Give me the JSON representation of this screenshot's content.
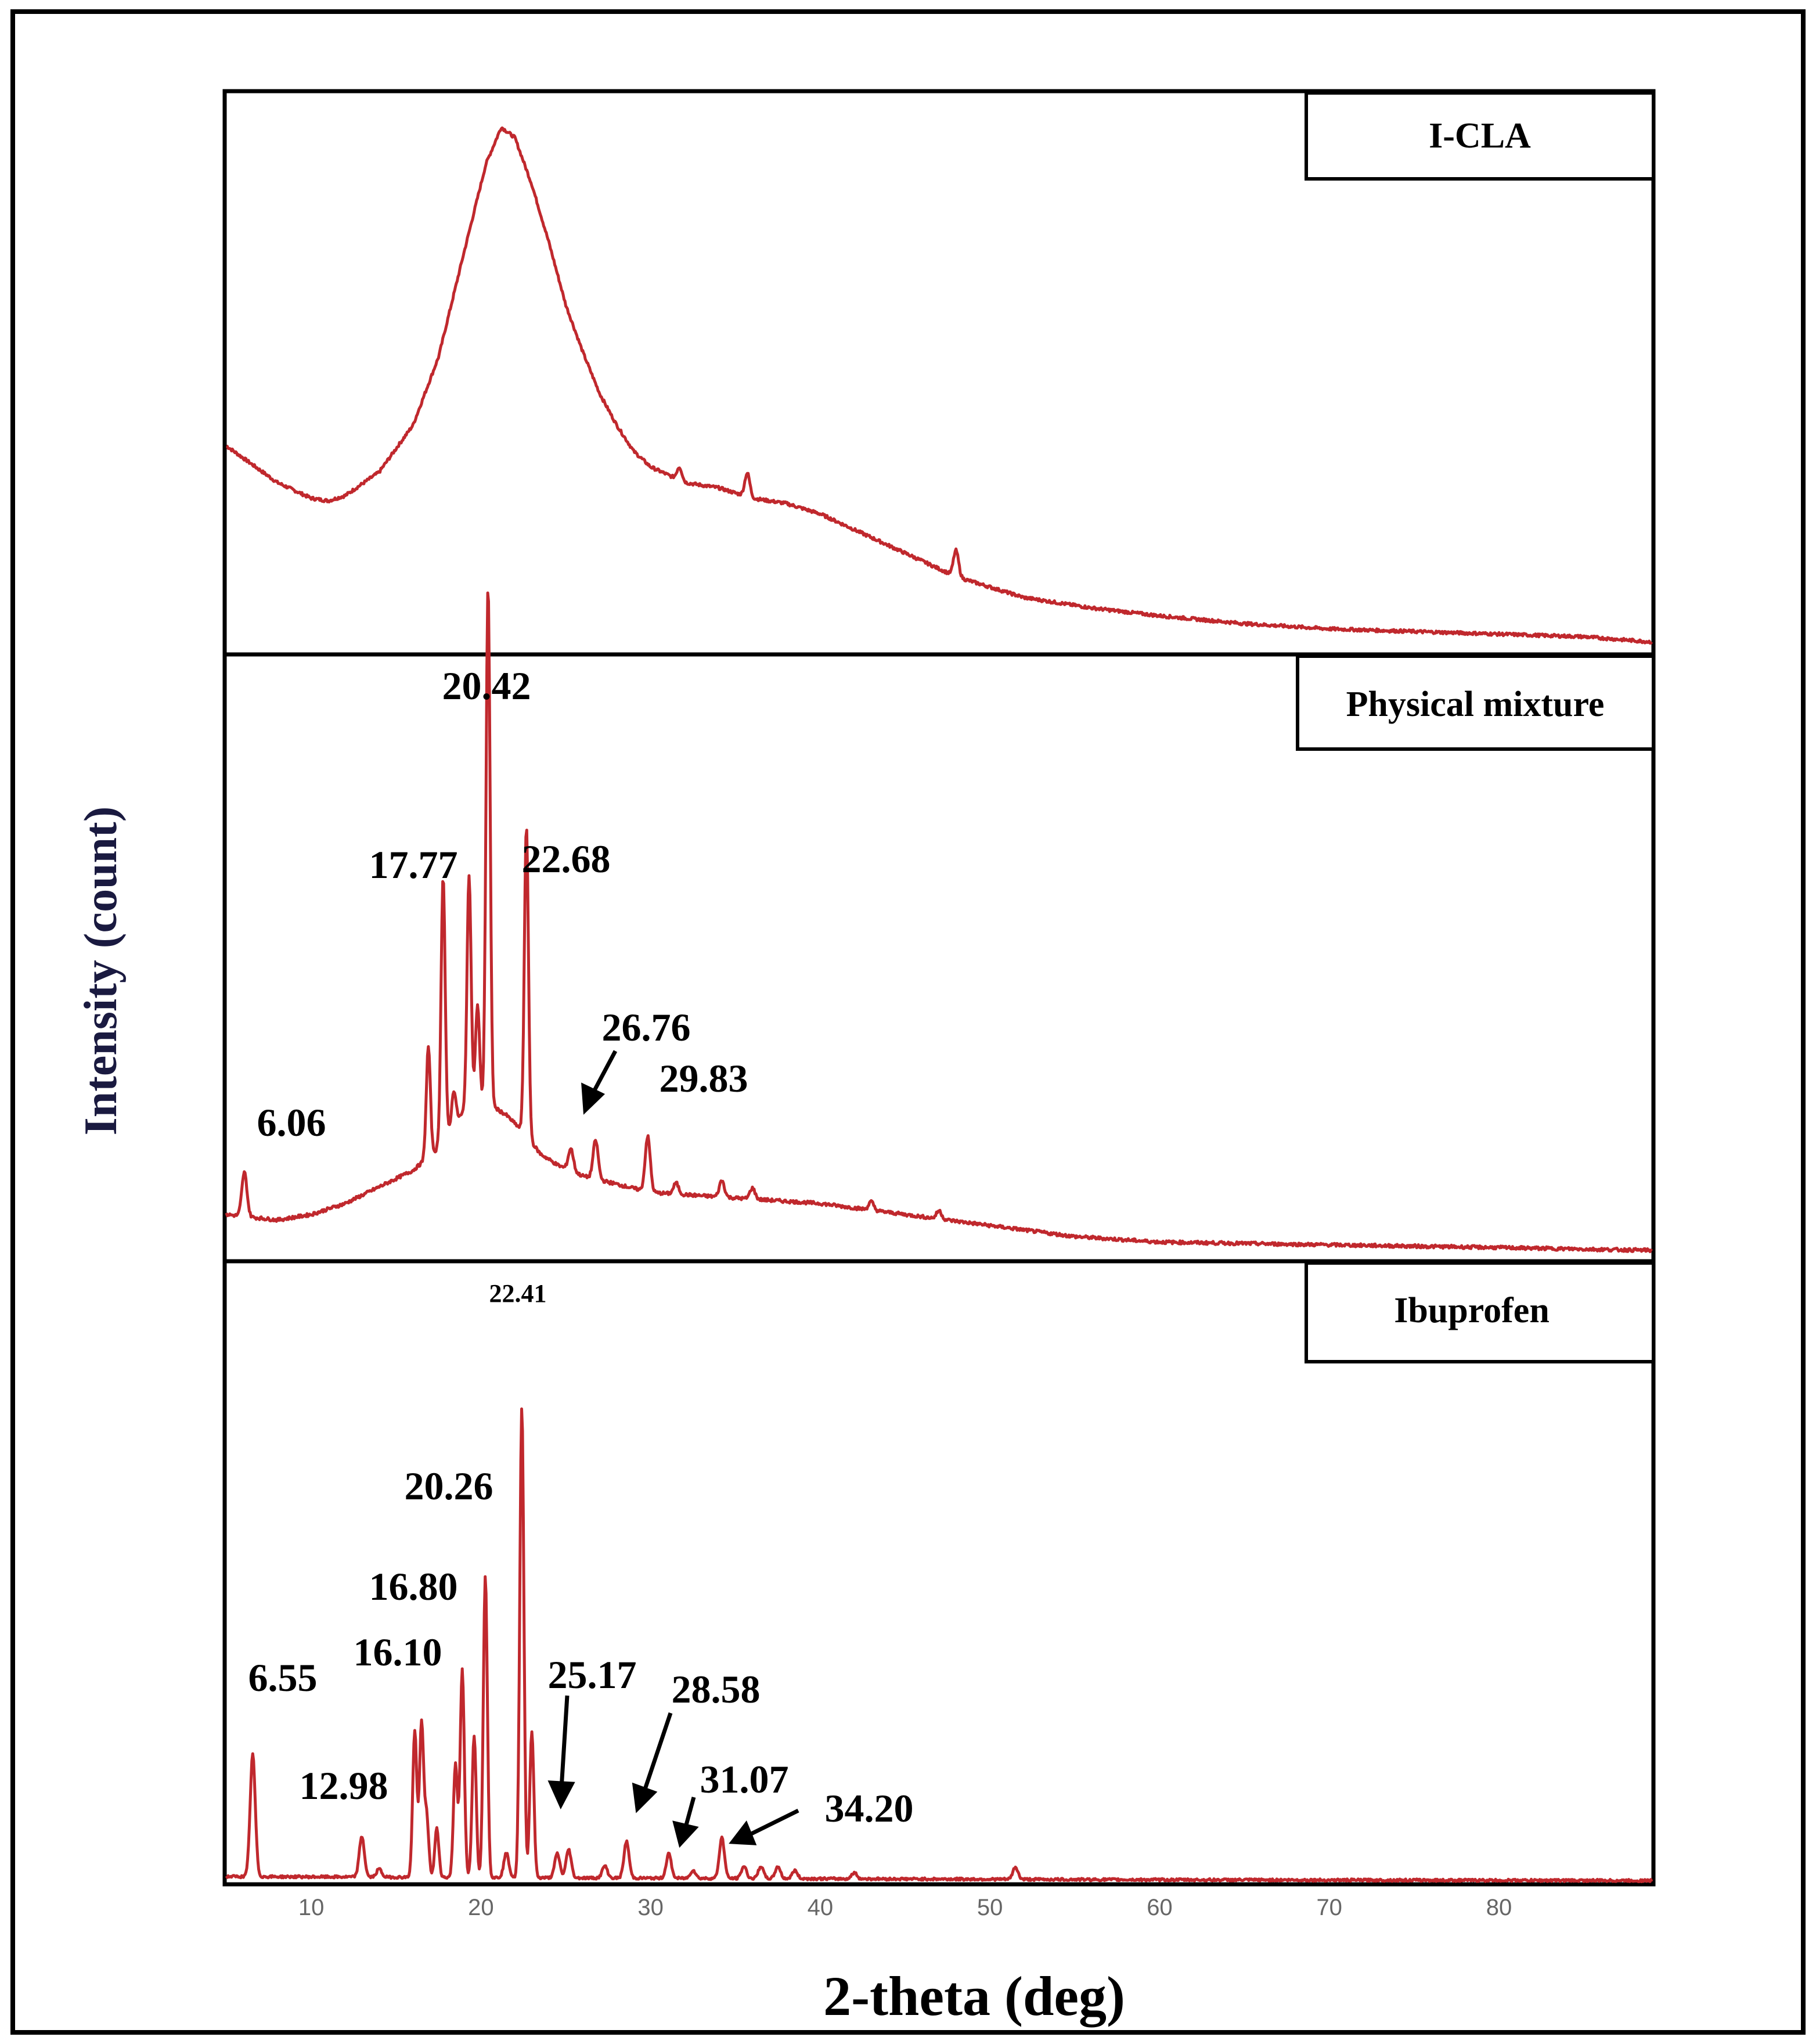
{
  "chart_data": {
    "type": "line",
    "xlabel": "2-theta (deg)",
    "ylabel": "Intensity (count)",
    "xlim": [
      5,
      89
    ],
    "xticks": [
      10,
      20,
      30,
      40,
      50,
      60,
      70,
      80
    ],
    "series_color": "#c0282d",
    "panels": [
      {
        "name": "I-CLA",
        "legend": "I-CLA",
        "ylim": [
          0,
          100
        ],
        "baseline": [
          [
            5,
            38
          ],
          [
            8,
            31
          ],
          [
            10,
            28
          ],
          [
            11,
            27.5
          ],
          [
            12,
            28.5
          ],
          [
            14,
            33
          ],
          [
            16,
            42
          ],
          [
            17.5,
            55
          ],
          [
            19,
            75
          ],
          [
            20.3,
            92
          ],
          [
            21.2,
            99
          ],
          [
            22,
            97
          ],
          [
            23,
            88
          ],
          [
            24,
            77
          ],
          [
            25,
            65
          ],
          [
            26,
            56
          ],
          [
            27,
            48
          ],
          [
            28,
            42
          ],
          [
            29,
            37
          ],
          [
            30,
            34
          ],
          [
            32,
            31
          ],
          [
            34,
            30
          ],
          [
            36,
            28
          ],
          [
            38,
            27
          ],
          [
            40,
            25
          ],
          [
            42,
            22
          ],
          [
            44,
            19
          ],
          [
            46,
            16
          ],
          [
            48,
            13
          ],
          [
            50,
            11
          ],
          [
            52,
            9
          ],
          [
            56,
            7
          ],
          [
            60,
            5.5
          ],
          [
            65,
            4
          ],
          [
            70,
            3
          ],
          [
            75,
            2.5
          ],
          [
            80,
            2
          ],
          [
            85,
            1.5
          ],
          [
            89,
            0.5
          ]
        ],
        "peaks": [
          [
            31.7,
            2.5,
            0.15
          ],
          [
            35.7,
            4.5,
            0.15
          ],
          [
            48.0,
            5,
            0.15
          ]
        ],
        "annotations": []
      },
      {
        "name": "Physical mixture",
        "legend": "Physical mixture",
        "ylim": [
          0,
          100
        ],
        "baseline": [
          [
            5,
            7
          ],
          [
            8,
            6
          ],
          [
            10,
            7
          ],
          [
            12,
            9
          ],
          [
            14,
            12
          ],
          [
            16,
            15
          ],
          [
            17.5,
            19
          ],
          [
            18.5,
            24
          ],
          [
            19.5,
            27
          ],
          [
            20.5,
            27
          ],
          [
            21.5,
            25
          ],
          [
            22.5,
            22
          ],
          [
            23.5,
            18
          ],
          [
            24.5,
            16
          ],
          [
            26,
            14
          ],
          [
            28,
            12.5
          ],
          [
            30,
            11
          ],
          [
            35,
            10
          ],
          [
            40,
            9
          ],
          [
            45,
            7
          ],
          [
            50,
            5
          ],
          [
            55,
            3
          ],
          [
            60,
            2
          ],
          [
            70,
            1.5
          ],
          [
            80,
            1
          ],
          [
            89,
            0.5
          ]
        ],
        "peaks": [
          [
            6.06,
            8,
            0.15
          ],
          [
            16.9,
            20,
            0.12
          ],
          [
            17.77,
            48,
            0.12
          ],
          [
            18.4,
            6,
            0.12
          ],
          [
            19.3,
            42,
            0.12
          ],
          [
            19.8,
            18,
            0.12
          ],
          [
            20.42,
            94,
            0.12
          ],
          [
            22.68,
            56,
            0.12
          ],
          [
            25.3,
            4,
            0.15
          ],
          [
            26.76,
            7,
            0.15
          ],
          [
            29.83,
            10,
            0.15
          ],
          [
            31.5,
            2,
            0.15
          ],
          [
            34.2,
            3,
            0.15
          ],
          [
            36.0,
            2,
            0.15
          ],
          [
            43.0,
            1.5,
            0.15
          ],
          [
            47.0,
            1.5,
            0.15
          ]
        ],
        "annotations": [
          {
            "x": 6.06,
            "text": "6.06"
          },
          {
            "x": 17.77,
            "text": "17.77"
          },
          {
            "x": 20.42,
            "text": "20.42"
          },
          {
            "x": 22.68,
            "text": "22.68"
          },
          {
            "x": 26.76,
            "text": "26.76"
          },
          {
            "x": 29.83,
            "text": "29.83"
          }
        ]
      },
      {
        "name": "Ibuprofen",
        "legend": "Ibuprofen",
        "ylim": [
          0,
          100
        ],
        "baseline": [
          [
            5,
            1.2
          ],
          [
            30,
            0.8
          ],
          [
            60,
            0.4
          ],
          [
            89,
            0.2
          ]
        ],
        "peaks": [
          [
            6.55,
            30,
            0.15
          ],
          [
            12.98,
            10,
            0.15
          ],
          [
            14.0,
            2,
            0.15
          ],
          [
            16.1,
            36,
            0.12
          ],
          [
            16.5,
            38,
            0.12
          ],
          [
            17.4,
            12,
            0.12
          ],
          [
            18.5,
            28,
            0.12
          ],
          [
            16.8,
            15,
            0.12
          ],
          [
            18.9,
            51,
            0.12
          ],
          [
            19.6,
            35,
            0.12
          ],
          [
            20.26,
            74,
            0.12
          ],
          [
            21.5,
            6,
            0.15
          ],
          [
            22.41,
            116,
            0.12
          ],
          [
            23.0,
            36,
            0.12
          ],
          [
            24.5,
            6,
            0.15
          ],
          [
            25.17,
            7,
            0.15
          ],
          [
            27.3,
            3,
            0.15
          ],
          [
            28.58,
            9,
            0.15
          ],
          [
            31.07,
            6,
            0.15
          ],
          [
            32.5,
            2,
            0.15
          ],
          [
            34.2,
            10,
            0.15
          ],
          [
            35.5,
            3,
            0.15
          ],
          [
            36.5,
            3,
            0.15
          ],
          [
            37.5,
            3,
            0.15
          ],
          [
            38.5,
            2,
            0.15
          ],
          [
            42.0,
            1.5,
            0.15
          ],
          [
            51.5,
            3,
            0.15
          ]
        ],
        "annotations": [
          {
            "x": 6.55,
            "text": "6.55"
          },
          {
            "x": 12.98,
            "text": "12.98"
          },
          {
            "x": 16.1,
            "text": "16.10"
          },
          {
            "x": 16.8,
            "text": "16.80"
          },
          {
            "x": 20.26,
            "text": "20.26"
          },
          {
            "x": 22.41,
            "text": "22.41"
          },
          {
            "x": 25.17,
            "text": "25.17"
          },
          {
            "x": 28.58,
            "text": "28.58"
          },
          {
            "x": 31.07,
            "text": "31.07"
          },
          {
            "x": 34.2,
            "text": "34.20"
          }
        ]
      }
    ]
  }
}
